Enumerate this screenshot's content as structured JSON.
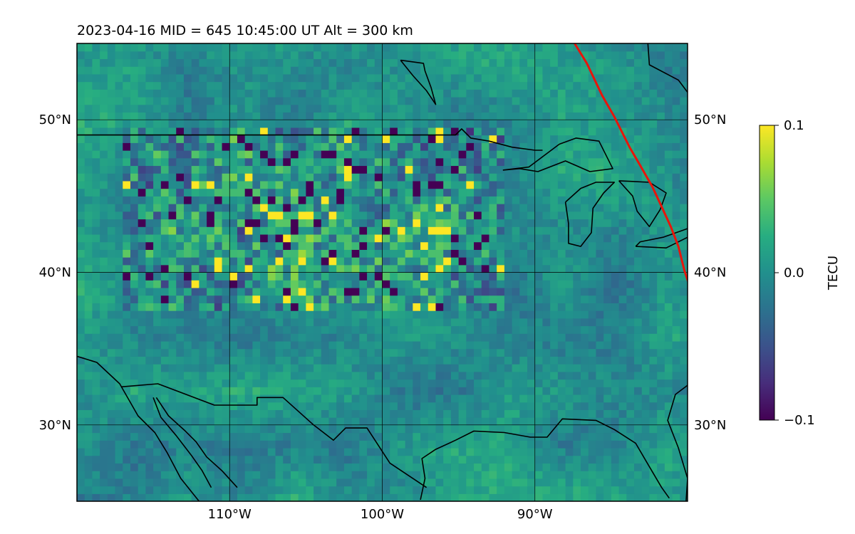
{
  "title": "2023-04-16  MID = 645    10:45:00  UT  Alt = 300 km",
  "chart_data": {
    "type": "heatmap",
    "title": "2023-04-16  MID = 645    10:45:00  UT  Alt = 300 km",
    "projection": "lat-lon map",
    "xlim": [
      -120,
      -80
    ],
    "ylim": [
      25,
      55
    ],
    "grid": true,
    "x_ticks": [
      {
        "value": -110,
        "label": "110°W"
      },
      {
        "value": -100,
        "label": "100°W"
      },
      {
        "value": -90,
        "label": "90°W"
      }
    ],
    "y_ticks": [
      {
        "value": 50,
        "label": "50°N"
      },
      {
        "value": 40,
        "label": "40°N"
      },
      {
        "value": 30,
        "label": "30°N"
      }
    ],
    "colorbar": {
      "label": "TECU",
      "colormap": "viridis",
      "range": [
        -0.1,
        0.1
      ],
      "ticks": [
        {
          "value": 0.1,
          "label": "0.1"
        },
        {
          "value": 0.0,
          "label": "0.0"
        },
        {
          "value": -0.1,
          "label": "−0.1"
        }
      ]
    },
    "background_value": 0.0,
    "cell_size_deg": 0.5,
    "disturbance_region": {
      "lon": [
        -117,
        -92
      ],
      "lat": [
        37.5,
        49.5
      ]
    },
    "terminator_color": "#e8150b",
    "terminator_line": [
      {
        "lon": -87.4,
        "lat": 55.0
      },
      {
        "lon": -86.6,
        "lat": 53.7
      },
      {
        "lon": -85.6,
        "lat": 51.6
      },
      {
        "lon": -84.8,
        "lat": 50.2
      },
      {
        "lon": -83.8,
        "lat": 48.2
      },
      {
        "lon": -83.1,
        "lat": 47.0
      },
      {
        "lon": -82.3,
        "lat": 45.6
      },
      {
        "lon": -81.7,
        "lat": 44.3
      },
      {
        "lon": -81.1,
        "lat": 43.0
      },
      {
        "lon": -80.6,
        "lat": 41.7
      },
      {
        "lon": -80.2,
        "lat": 40.1
      },
      {
        "lon": -79.8,
        "lat": 38.9
      }
    ],
    "coastlines": [
      {
        "name": "us-canada-border",
        "points": [
          [
            -120,
            49.0
          ],
          [
            -115,
            49.0
          ],
          [
            -110,
            49.0
          ],
          [
            -105,
            49.0
          ],
          [
            -100,
            49.0
          ],
          [
            -95.2,
            49.0
          ],
          [
            -94.8,
            49.4
          ],
          [
            -94.2,
            48.8
          ],
          [
            -93.0,
            48.6
          ],
          [
            -91.5,
            48.2
          ],
          [
            -90.0,
            48.0
          ],
          [
            -89.5,
            48.0
          ]
        ]
      },
      {
        "name": "lake-superior",
        "points": [
          [
            -92.1,
            46.7
          ],
          [
            -90.4,
            46.9
          ],
          [
            -88.4,
            48.4
          ],
          [
            -87.3,
            48.8
          ],
          [
            -85.8,
            48.6
          ],
          [
            -84.9,
            46.8
          ],
          [
            -86.4,
            46.6
          ],
          [
            -88.0,
            47.3
          ],
          [
            -89.8,
            46.6
          ],
          [
            -91.0,
            46.8
          ],
          [
            -92.1,
            46.7
          ]
        ]
      },
      {
        "name": "lake-michigan",
        "points": [
          [
            -88.0,
            44.6
          ],
          [
            -87.8,
            43.2
          ],
          [
            -87.8,
            41.9
          ],
          [
            -87.0,
            41.7
          ],
          [
            -86.3,
            42.6
          ],
          [
            -86.2,
            44.2
          ],
          [
            -85.5,
            45.2
          ],
          [
            -84.8,
            45.9
          ],
          [
            -86.0,
            45.9
          ],
          [
            -87.0,
            45.5
          ],
          [
            -88.0,
            44.6
          ]
        ]
      },
      {
        "name": "lake-huron",
        "points": [
          [
            -84.5,
            46.0
          ],
          [
            -83.6,
            45.0
          ],
          [
            -83.3,
            44.0
          ],
          [
            -82.5,
            43.0
          ],
          [
            -81.8,
            44.1
          ],
          [
            -81.4,
            45.2
          ],
          [
            -82.5,
            45.9
          ],
          [
            -84.5,
            46.0
          ]
        ]
      },
      {
        "name": "lake-erie",
        "points": [
          [
            -83.4,
            41.7
          ],
          [
            -81.4,
            41.6
          ],
          [
            -79.8,
            42.4
          ],
          [
            -79.9,
            42.9
          ],
          [
            -81.6,
            42.3
          ],
          [
            -83.1,
            42.0
          ],
          [
            -83.4,
            41.7
          ]
        ]
      },
      {
        "name": "canada-north-shore",
        "points": [
          [
            -82.6,
            55.0
          ],
          [
            -82.5,
            53.6
          ],
          [
            -80.6,
            52.6
          ],
          [
            -80.0,
            51.8
          ]
        ]
      },
      {
        "name": "lake-winnipeg",
        "points": [
          [
            -98.8,
            53.9
          ],
          [
            -97.3,
            53.7
          ],
          [
            -97.2,
            53.2
          ],
          [
            -96.8,
            52.1
          ],
          [
            -96.5,
            51.0
          ],
          [
            -97.1,
            51.9
          ],
          [
            -98.0,
            52.9
          ],
          [
            -98.8,
            53.9
          ]
        ]
      },
      {
        "name": "mexico-pacific-coast",
        "points": [
          [
            -120,
            34.5
          ],
          [
            -118.7,
            34.1
          ],
          [
            -117.2,
            32.7
          ],
          [
            -116.0,
            30.6
          ],
          [
            -114.9,
            29.5
          ],
          [
            -114.1,
            28.2
          ],
          [
            -113.2,
            26.5
          ],
          [
            -112.0,
            25.0
          ]
        ]
      },
      {
        "name": "us-mexico-border",
        "points": [
          [
            -117.1,
            32.5
          ],
          [
            -114.7,
            32.7
          ],
          [
            -111.0,
            31.3
          ],
          [
            -108.2,
            31.3
          ],
          [
            -108.2,
            31.8
          ],
          [
            -106.5,
            31.8
          ],
          [
            -104.5,
            30.0
          ],
          [
            -103.2,
            29.0
          ],
          [
            -102.4,
            29.8
          ],
          [
            -101.0,
            29.8
          ],
          [
            -99.5,
            27.5
          ],
          [
            -97.1,
            25.9
          ]
        ]
      },
      {
        "name": "gulf-of-california-east",
        "points": [
          [
            -114.8,
            31.8
          ],
          [
            -114.0,
            30.6
          ],
          [
            -112.9,
            29.6
          ],
          [
            -112.2,
            28.9
          ],
          [
            -111.5,
            27.9
          ],
          [
            -110.5,
            27.0
          ],
          [
            -109.5,
            25.9
          ]
        ]
      },
      {
        "name": "gulf-of-california-west",
        "points": [
          [
            -115.0,
            31.8
          ],
          [
            -114.5,
            30.5
          ],
          [
            -113.5,
            29.3
          ],
          [
            -112.5,
            28.0
          ],
          [
            -111.8,
            27.0
          ],
          [
            -111.2,
            25.9
          ]
        ]
      },
      {
        "name": "gulf-coast",
        "points": [
          [
            -97.5,
            25.1
          ],
          [
            -97.2,
            26.5
          ],
          [
            -97.4,
            27.8
          ],
          [
            -96.5,
            28.4
          ],
          [
            -95.2,
            29.0
          ],
          [
            -94.0,
            29.6
          ],
          [
            -92.0,
            29.5
          ],
          [
            -90.3,
            29.2
          ],
          [
            -89.2,
            29.2
          ],
          [
            -88.2,
            30.4
          ],
          [
            -86.0,
            30.3
          ],
          [
            -84.8,
            29.7
          ],
          [
            -83.4,
            28.8
          ],
          [
            -82.7,
            27.6
          ],
          [
            -81.7,
            25.9
          ],
          [
            -81.2,
            25.2
          ]
        ]
      },
      {
        "name": "florida-atlantic",
        "points": [
          [
            -80.1,
            25.0
          ],
          [
            -80.0,
            26.5
          ],
          [
            -80.6,
            28.5
          ],
          [
            -81.3,
            30.3
          ],
          [
            -80.8,
            32.0
          ],
          [
            -80.0,
            32.6
          ]
        ]
      }
    ]
  }
}
